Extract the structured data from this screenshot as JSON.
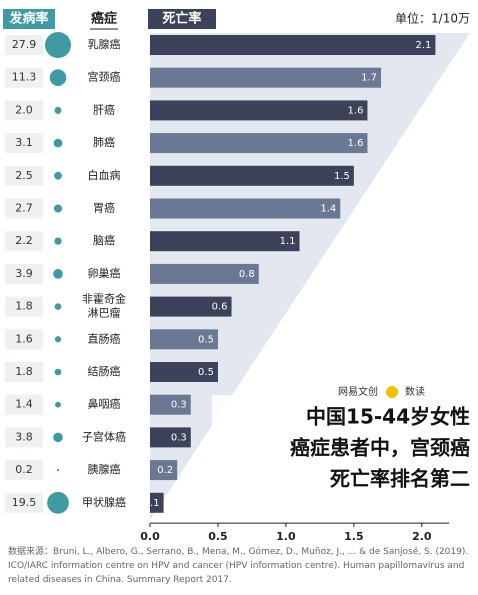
{
  "chart_data": {
    "type": "bar",
    "orientation": "horizontal",
    "headers": {
      "incidence": "发病率",
      "cancer": "癌症",
      "mortality": "死亡率",
      "unit": "单位：1/10万"
    },
    "categories": [
      "乳腺癌",
      "宫颈癌",
      "肝癌",
      "肺癌",
      "白血病",
      "胃癌",
      "脑癌",
      "卵巢癌",
      "非霍奇金淋巴瘤",
      "直肠癌",
      "结肠癌",
      "鼻咽癌",
      "子宫体癌",
      "胰腺癌",
      "甲状腺癌"
    ],
    "series": [
      {
        "name": "发病率",
        "color": "#3f9aa3",
        "values": [
          27.9,
          11.3,
          2.0,
          3.1,
          2.5,
          2.7,
          2.2,
          3.9,
          1.8,
          1.6,
          1.8,
          1.4,
          3.8,
          0.2,
          19.5
        ],
        "value_labels": [
          "27.9",
          "11.3",
          "2.0",
          "3.1",
          "2.5",
          "2.7",
          "2.2",
          "3.9",
          "1.8",
          "1.6",
          "1.8",
          "1.4",
          "3.8",
          "0.2",
          "19.5"
        ]
      },
      {
        "name": "死亡率",
        "colors": [
          "#3b4259",
          "#6b7893"
        ],
        "values": [
          2.1,
          1.7,
          1.6,
          1.6,
          1.5,
          1.4,
          1.1,
          0.8,
          0.6,
          0.5,
          0.5,
          0.3,
          0.3,
          0.2,
          0.1
        ]
      }
    ],
    "xlim": [
      0,
      2.2
    ],
    "xticks": [
      {
        "value": 0,
        "label": "0.0"
      },
      0.5,
      {
        "value": 1,
        "label": "1.0"
      },
      1.5,
      {
        "value": 2,
        "label": "2.0"
      }
    ],
    "annotation": [
      "中国15-44岁女性",
      "癌症患者中，宫颈癌",
      "死亡率排名第二"
    ],
    "brand": [
      "网易文创",
      "数读"
    ],
    "source": "数据来源：Bruni, L., Albero, G., Serrano, B., Mena, M., Gómez, D., Muñoz, J., ... & de Sanjosé, S. (2019). ICO/IARC information centre on HPV and cancer (HPV information centre). Human papillomavirus and related diseases in China. Summary Report 2017."
  }
}
